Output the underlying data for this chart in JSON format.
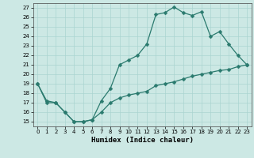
{
  "xlabel": "Humidex (Indice chaleur)",
  "bg_color": "#cce8e4",
  "grid_color": "#aad4d0",
  "line_color": "#2a7a6e",
  "upper_line_x": [
    0,
    1,
    2,
    3,
    4,
    5,
    6,
    7,
    8,
    9,
    10,
    11,
    12,
    13,
    14,
    15,
    16,
    17,
    18,
    19,
    20,
    21,
    22,
    23
  ],
  "upper_line_y": [
    19,
    17,
    17,
    16,
    15,
    15,
    15.2,
    17.2,
    18.5,
    21,
    21.5,
    22,
    23.2,
    26.3,
    26.5,
    27.1,
    26.5,
    26.2,
    26.6,
    24,
    24.5,
    23.2,
    22,
    21
  ],
  "lower_line_x": [
    0,
    1,
    2,
    3,
    4,
    5,
    6,
    7,
    8,
    9,
    10,
    11,
    12,
    13,
    14,
    15,
    16,
    17,
    18,
    19,
    20,
    21,
    22,
    23
  ],
  "lower_line_y": [
    19,
    17.2,
    17,
    16,
    15,
    15,
    15.2,
    16,
    17,
    17.5,
    17.8,
    18,
    18.2,
    18.8,
    19,
    19.2,
    19.5,
    19.8,
    20,
    20.2,
    20.4,
    20.5,
    20.8,
    21
  ],
  "xlim": [
    -0.5,
    23.5
  ],
  "ylim": [
    14.5,
    27.5
  ],
  "yticks": [
    15,
    16,
    17,
    18,
    19,
    20,
    21,
    22,
    23,
    24,
    25,
    26,
    27
  ],
  "xticks": [
    0,
    1,
    2,
    3,
    4,
    5,
    6,
    7,
    8,
    9,
    10,
    11,
    12,
    13,
    14,
    15,
    16,
    17,
    18,
    19,
    20,
    21,
    22,
    23
  ],
  "xlabel_fontsize": 6.5,
  "tick_fontsize": 5.0,
  "marker_size": 2.5,
  "line_width": 0.9
}
